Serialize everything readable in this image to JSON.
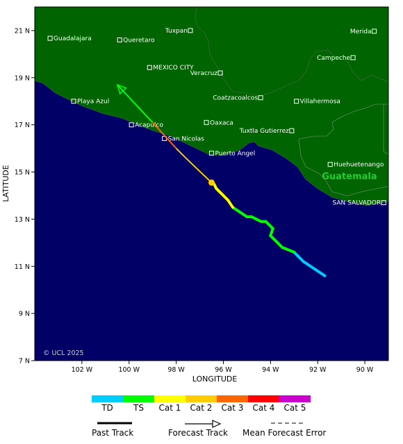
{
  "map": {
    "copyright": "© UCL 2025",
    "xlabel": "LONGITUDE",
    "ylabel": "LATITUDE",
    "lon_range": [
      -104,
      -89
    ],
    "lat_range": [
      7,
      22
    ],
    "lon_ticks": [
      {
        "value": -102,
        "label": "102 W"
      },
      {
        "value": -100,
        "label": "100 W"
      },
      {
        "value": -98,
        "label": "98 W"
      },
      {
        "value": -96,
        "label": "96 W"
      },
      {
        "value": -94,
        "label": "94 W"
      },
      {
        "value": -92,
        "label": "92 W"
      },
      {
        "value": -90,
        "label": "90 W"
      }
    ],
    "lat_ticks": [
      {
        "value": 7,
        "label": "7 N"
      },
      {
        "value": 9,
        "label": "9 N"
      },
      {
        "value": 11,
        "label": "11 N"
      },
      {
        "value": 13,
        "label": "13 N"
      },
      {
        "value": 15,
        "label": "15 N"
      },
      {
        "value": 17,
        "label": "17 N"
      },
      {
        "value": 19,
        "label": "19 N"
      },
      {
        "value": 21,
        "label": "21 N"
      }
    ],
    "colors": {
      "ocean": "#000066",
      "land": "#006400",
      "border": "#5a7a5a"
    },
    "country_label": {
      "text": "Guatemala",
      "color": "#22cc33"
    },
    "cities": [
      {
        "name": "Guadalajara",
        "lon": -103.35,
        "lat": 20.67
      },
      {
        "name": "Queretaro",
        "lon": -100.4,
        "lat": 20.6
      },
      {
        "name": "Tuxpan",
        "lon": -97.4,
        "lat": 21.0
      },
      {
        "name": "Merida",
        "lon": -89.6,
        "lat": 20.97
      },
      {
        "name": "MEXICO CITY",
        "lon": -99.13,
        "lat": 19.43
      },
      {
        "name": "Veracruz",
        "lon": -96.13,
        "lat": 19.2
      },
      {
        "name": "Campeche",
        "lon": -90.5,
        "lat": 19.85
      },
      {
        "name": "Playa Azul",
        "lon": -102.35,
        "lat": 18.0
      },
      {
        "name": "Coatzacoalcos",
        "lon": -94.42,
        "lat": 18.15
      },
      {
        "name": "Villahermosa",
        "lon": -92.9,
        "lat": 18.0
      },
      {
        "name": "Acapulco",
        "lon": -99.9,
        "lat": 17.0
      },
      {
        "name": "Oaxaca",
        "lon": -96.72,
        "lat": 17.1
      },
      {
        "name": "Tuxtla Gutierrez",
        "lon": -93.1,
        "lat": 16.75
      },
      {
        "name": "San Nicolas",
        "lon": -98.5,
        "lat": 16.42
      },
      {
        "name": "Puerto Angel",
        "lon": -96.5,
        "lat": 15.8
      },
      {
        "name": "Huehuetenango",
        "lon": -91.47,
        "lat": 15.32
      },
      {
        "name": "SAN SALVADOR",
        "lon": -89.2,
        "lat": 13.7
      }
    ],
    "past_track": [
      {
        "lon": -91.7,
        "lat": 10.6,
        "cat": "TD"
      },
      {
        "lon": -92.6,
        "lat": 11.2,
        "cat": "TD"
      },
      {
        "lon": -93.0,
        "lat": 11.6,
        "cat": "TD"
      },
      {
        "lon": -93.5,
        "lat": 11.8,
        "cat": "TS"
      },
      {
        "lon": -93.9,
        "lat": 12.2,
        "cat": "TS"
      },
      {
        "lon": -94.0,
        "lat": 12.3,
        "cat": "TS"
      },
      {
        "lon": -93.9,
        "lat": 12.6,
        "cat": "TS"
      },
      {
        "lon": -94.2,
        "lat": 12.9,
        "cat": "TS"
      },
      {
        "lon": -94.4,
        "lat": 12.9,
        "cat": "TS"
      },
      {
        "lon": -94.6,
        "lat": 13.0,
        "cat": "TS"
      },
      {
        "lon": -94.8,
        "lat": 13.1,
        "cat": "TS"
      },
      {
        "lon": -95.0,
        "lat": 13.1,
        "cat": "TS"
      },
      {
        "lon": -95.3,
        "lat": 13.3,
        "cat": "TS"
      },
      {
        "lon": -95.6,
        "lat": 13.5,
        "cat": "TS"
      },
      {
        "lon": -95.8,
        "lat": 13.8,
        "cat": "Cat 1"
      },
      {
        "lon": -96.1,
        "lat": 14.1,
        "cat": "Cat 1"
      },
      {
        "lon": -96.3,
        "lat": 14.3,
        "cat": "Cat 1"
      },
      {
        "lon": -96.4,
        "lat": 14.5,
        "cat": "Cat 1"
      }
    ],
    "current_position": {
      "lon": -96.5,
      "lat": 14.55
    },
    "forecast_track": [
      {
        "lon": -96.5,
        "lat": 14.55,
        "cat": "Cat 2"
      },
      {
        "lon": -97.6,
        "lat": 15.6,
        "cat": "Cat 2"
      },
      {
        "lon": -98.0,
        "lat": 16.0,
        "cat": "Cat 3"
      },
      {
        "lon": -99.0,
        "lat": 17.1,
        "cat": "TS"
      },
      {
        "lon": -100.5,
        "lat": 18.7,
        "cat": "TS"
      }
    ]
  },
  "legend": {
    "categories": [
      {
        "label": "TD",
        "color": "#00ccff"
      },
      {
        "label": "TS",
        "color": "#00ff00"
      },
      {
        "label": "Cat 1",
        "color": "#ffff00"
      },
      {
        "label": "Cat 2",
        "color": "#ffcc00"
      },
      {
        "label": "Cat 3",
        "color": "#ff6600"
      },
      {
        "label": "Cat 4",
        "color": "#ff0000"
      },
      {
        "label": "Cat 5",
        "color": "#cc00cc"
      }
    ],
    "past_track_label": "Past Track",
    "forecast_track_label": "Forecast Track",
    "mean_error_label": "Mean Forecast Error"
  }
}
